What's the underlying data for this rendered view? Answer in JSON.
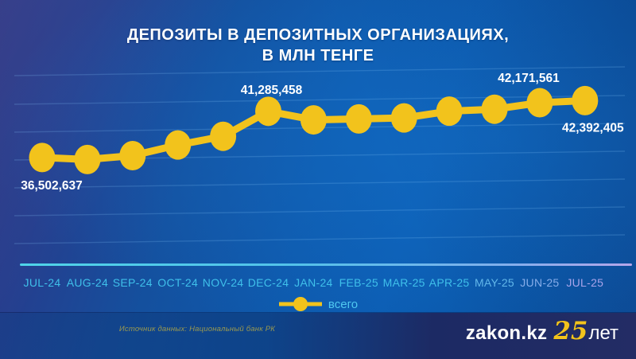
{
  "title": {
    "line1": "ДЕПОЗИТЫ В ДЕПОЗИТНЫХ ОРГАНИЗАЦИЯХ,",
    "line2": "В МЛН ТЕНГЕ"
  },
  "legend": {
    "label": "всего"
  },
  "footer": {
    "source": "Источник данных: Национальный банк РК",
    "logo": {
      "site": "zakon.kz",
      "anniversary_number": "25",
      "anniversary_suffix": "лет"
    }
  },
  "colors": {
    "accent": "#f2c31c",
    "title_text": "#ffffff",
    "value_label_text": "#ffffff",
    "month_label_start": "#3fc0ea",
    "month_label_end": "#a9a4ea",
    "axis_gradient_start": "#4fd4e9",
    "axis_gradient_end": "#b5a6ea",
    "gridline": "rgba(140,205,255,0.20)",
    "legend_text": "#4fc8f0",
    "source_text": "#a8a24a",
    "logo_text": "#ffffff",
    "background_navy": "#2d3584",
    "background_azure": "#0c5db3"
  },
  "chart_data": {
    "type": "line",
    "title": "ДЕПОЗИТЫ В ДЕПОЗИТНЫХ ОРГАНИЗАЦИЯХ, В МЛН ТЕНГЕ",
    "xlabel": "",
    "ylabel": "млн тенге",
    "grid": true,
    "legend_position": "bottom",
    "categories": [
      "JUL-24",
      "AUG-24",
      "SEP-24",
      "OCT-24",
      "NOV-24",
      "DEC-24",
      "JAN-24",
      "FEB-25",
      "MAR-25",
      "APR-25",
      "MAY-25",
      "JUN-25",
      "JUL-25"
    ],
    "series": [
      {
        "name": "всего",
        "values": [
          36502637,
          36300000,
          36700000,
          37800000,
          38700000,
          41285458,
          40400000,
          40500000,
          40600000,
          41300000,
          41500000,
          42171561,
          42392405
        ]
      }
    ],
    "ylim": [
      36000000,
      43000000
    ],
    "callouts": [
      {
        "index": 0,
        "text": "36,502,637",
        "position": "below"
      },
      {
        "index": 5,
        "text": "41,285,458",
        "position": "above"
      },
      {
        "index": 11,
        "text": "42,171,561",
        "position": "above-left"
      },
      {
        "index": 12,
        "text": "42,392,405",
        "position": "below-right"
      }
    ]
  }
}
